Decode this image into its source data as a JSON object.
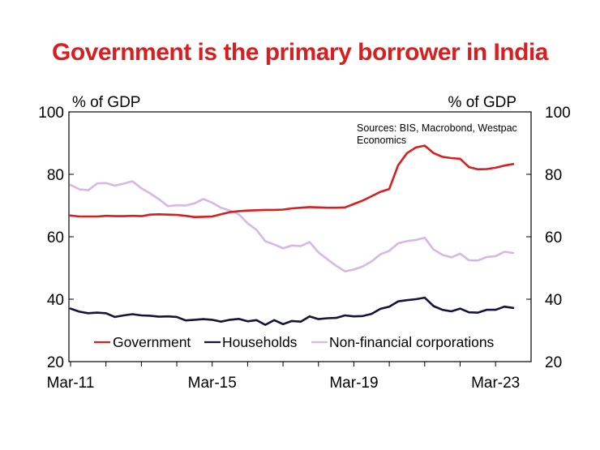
{
  "chart_data": {
    "type": "line",
    "title": "Government is the primary borrower in India",
    "ylabel_left": "% of GDP",
    "ylabel_right": "% of GDP",
    "source": [
      "Sources: BIS, Macrobond, Westpac",
      "Economics"
    ],
    "ylim": [
      20,
      100
    ],
    "yticks": [
      20,
      40,
      60,
      80,
      100
    ],
    "x_tick_labels": [
      "Mar-11",
      "Mar-15",
      "Mar-19",
      "Mar-23"
    ],
    "x": [
      "Mar-11",
      "Jun-11",
      "Sep-11",
      "Dec-11",
      "Mar-12",
      "Jun-12",
      "Sep-12",
      "Dec-12",
      "Mar-13",
      "Jun-13",
      "Sep-13",
      "Dec-13",
      "Mar-14",
      "Jun-14",
      "Sep-14",
      "Dec-14",
      "Mar-15",
      "Jun-15",
      "Sep-15",
      "Dec-15",
      "Mar-16",
      "Jun-16",
      "Sep-16",
      "Dec-16",
      "Mar-17",
      "Jun-17",
      "Sep-17",
      "Dec-17",
      "Mar-18",
      "Jun-18",
      "Sep-18",
      "Dec-18",
      "Mar-19",
      "Jun-19",
      "Sep-19",
      "Dec-19",
      "Mar-20",
      "Jun-20",
      "Sep-20",
      "Dec-20",
      "Mar-21",
      "Jun-21",
      "Sep-21",
      "Dec-21",
      "Mar-22",
      "Jun-22",
      "Sep-22",
      "Dec-22",
      "Mar-23",
      "Jun-23",
      "Sep-23"
    ],
    "grid": false,
    "legend_position": "bottom",
    "series": [
      {
        "name": "Government",
        "color": "#d81e1e",
        "values": [
          66.8,
          66.5,
          66.5,
          66.5,
          66.7,
          66.6,
          66.6,
          66.7,
          66.6,
          67.1,
          67.2,
          67.1,
          67.0,
          66.7,
          66.3,
          66.4,
          66.5,
          67.2,
          67.9,
          68.2,
          68.4,
          68.5,
          68.6,
          68.6,
          68.7,
          69.1,
          69.3,
          69.5,
          69.4,
          69.3,
          69.3,
          69.4,
          70.5,
          71.6,
          73.0,
          74.4,
          75.3,
          82.9,
          86.8,
          88.6,
          89.2,
          86.8,
          85.6,
          85.2,
          85.0,
          82.3,
          81.6,
          81.7,
          82.1,
          82.8,
          83.3
        ]
      },
      {
        "name": "Households",
        "color": "#14143c",
        "values": [
          37.0,
          36.0,
          35.5,
          35.7,
          35.5,
          34.3,
          34.8,
          35.2,
          34.8,
          34.7,
          34.4,
          34.5,
          34.3,
          33.2,
          33.4,
          33.6,
          33.4,
          32.8,
          33.4,
          33.7,
          32.9,
          33.3,
          31.8,
          33.3,
          32.0,
          33.0,
          32.8,
          34.5,
          33.6,
          33.9,
          34.0,
          34.8,
          34.5,
          34.6,
          35.3,
          36.9,
          37.6,
          39.3,
          39.7,
          40.0,
          40.5,
          37.8,
          36.6,
          36.1,
          37.0,
          35.8,
          35.7,
          36.6,
          36.6,
          37.6,
          37.2
        ]
      },
      {
        "name": "Non-financial corporations",
        "color": "#d7b7e6",
        "values": [
          76.6,
          75.2,
          74.9,
          77.1,
          77.2,
          76.4,
          77.0,
          77.8,
          75.5,
          73.9,
          72.0,
          69.8,
          70.1,
          70.0,
          70.7,
          72.1,
          70.9,
          69.3,
          68.4,
          67.2,
          64.3,
          62.2,
          58.6,
          57.5,
          56.3,
          57.2,
          57.0,
          58.3,
          55.0,
          52.8,
          50.7,
          48.9,
          49.5,
          50.5,
          52.1,
          54.4,
          55.5,
          57.9,
          58.6,
          59.0,
          59.7,
          55.9,
          54.2,
          53.4,
          54.6,
          52.5,
          52.4,
          53.5,
          53.8,
          55.2,
          54.8
        ]
      }
    ]
  }
}
